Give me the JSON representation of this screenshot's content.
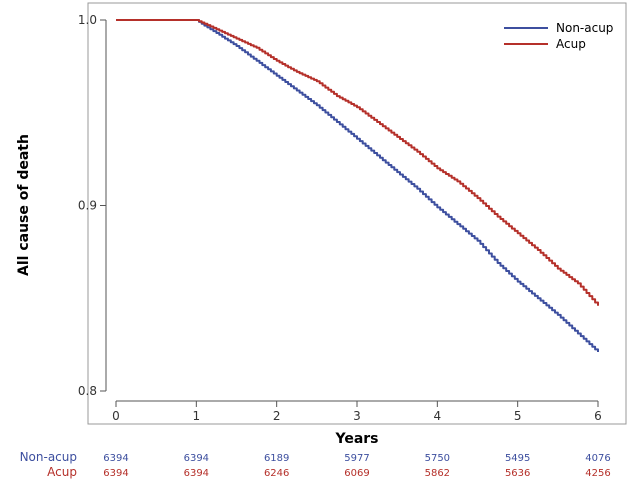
{
  "chart_data": {
    "type": "line",
    "title": "",
    "xlabel": "Years",
    "ylabel": "All cause of death",
    "xlim": [
      0,
      6
    ],
    "ylim": [
      0.8,
      1.0
    ],
    "x_ticks": [
      0,
      1,
      2,
      3,
      4,
      5,
      6
    ],
    "y_ticks": [
      0.8,
      0.9,
      1.0
    ],
    "y_tick_labels": [
      "0.8",
      "0.9",
      "1.0"
    ],
    "grid": false,
    "legend_position": "top-right",
    "series": [
      {
        "name": "Non-acup",
        "color": "#3d4f9f",
        "x": [
          0,
          1.0,
          1.1,
          1.25,
          1.5,
          1.75,
          2.0,
          2.25,
          2.5,
          2.75,
          3.0,
          3.25,
          3.5,
          3.75,
          4.0,
          4.25,
          4.5,
          4.75,
          5.0,
          5.25,
          5.5,
          5.75,
          6.0
        ],
        "y": [
          1.0,
          1.0,
          0.997,
          0.993,
          0.986,
          0.978,
          0.97,
          0.962,
          0.954,
          0.945,
          0.936,
          0.927,
          0.918,
          0.909,
          0.899,
          0.89,
          0.881,
          0.869,
          0.859,
          0.85,
          0.841,
          0.831,
          0.821
        ]
      },
      {
        "name": "Acup",
        "color": "#b5302a",
        "x": [
          0,
          1.0,
          1.1,
          1.25,
          1.5,
          1.75,
          2.0,
          2.25,
          2.5,
          2.75,
          3.0,
          3.25,
          3.5,
          3.75,
          4.0,
          4.25,
          4.5,
          4.75,
          5.0,
          5.25,
          5.5,
          5.75,
          6.0
        ],
        "y": [
          1.0,
          1.0,
          0.998,
          0.995,
          0.99,
          0.985,
          0.978,
          0.972,
          0.967,
          0.959,
          0.953,
          0.945,
          0.937,
          0.929,
          0.92,
          0.913,
          0.904,
          0.894,
          0.885,
          0.876,
          0.866,
          0.858,
          0.846
        ]
      }
    ],
    "risk_table": [
      {
        "name": "Non-acup",
        "color": "#3d4f9f",
        "values": [
          "6394",
          "6394",
          "6189",
          "5977",
          "5750",
          "5495",
          "4076"
        ]
      },
      {
        "name": "Acup",
        "color": "#b5302a",
        "values": [
          "6394",
          "6394",
          "6246",
          "6069",
          "5862",
          "5636",
          "4256"
        ]
      }
    ]
  }
}
